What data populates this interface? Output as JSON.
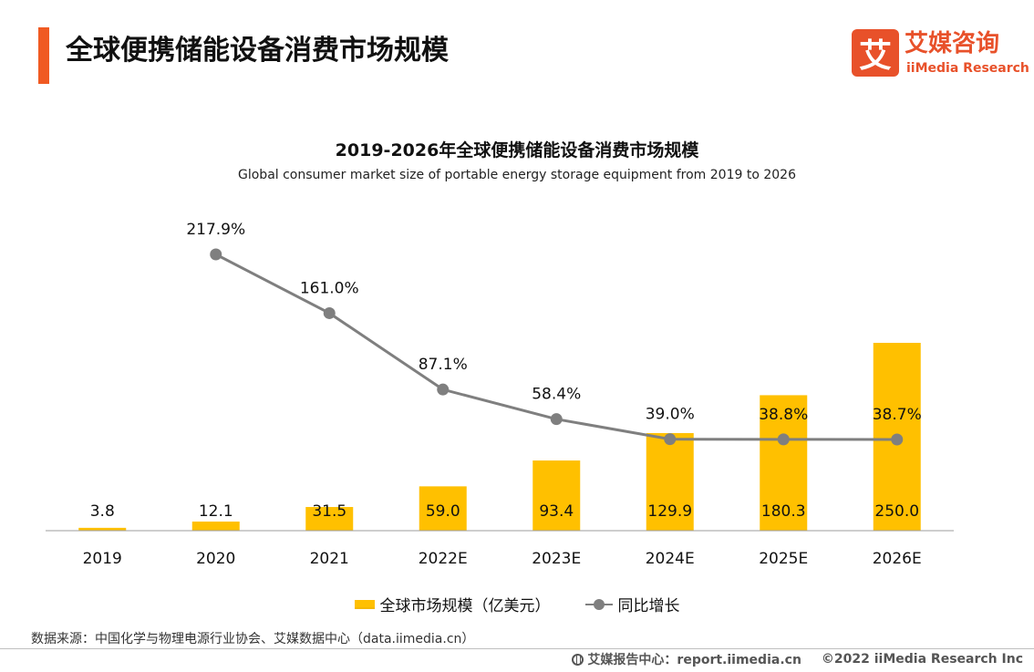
{
  "header": {
    "title": "全球便携储能设备消费市场规模",
    "accent_color": "#f05a22"
  },
  "logo": {
    "mark": "艾",
    "name_cn": "艾媒咨询",
    "name_en": "iiMedia Research",
    "color": "#e8512a"
  },
  "chart_data": {
    "type": "bar",
    "title": "2019-2026年全球便携储能设备消费市场规模",
    "subtitle": "Global consumer market size of portable energy storage equipment from 2019 to 2026",
    "categories": [
      "2019",
      "2020",
      "2021",
      "2022E",
      "2023E",
      "2024E",
      "2025E",
      "2026E"
    ],
    "series": [
      {
        "name": "全球市场规模（亿美元）",
        "type": "bar",
        "values": [
          3.8,
          12.1,
          31.5,
          59.0,
          93.4,
          129.9,
          180.3,
          250.0
        ],
        "labels": [
          "3.8",
          "12.1",
          "31.5",
          "59.0",
          "93.4",
          "129.9",
          "180.3",
          "250.0"
        ],
        "color": "#ffc000"
      },
      {
        "name": "同比增长",
        "type": "line",
        "values": [
          null,
          217.9,
          161.0,
          87.1,
          58.4,
          39.0,
          38.8,
          38.7
        ],
        "labels": [
          "",
          "217.9%",
          "161.0%",
          "87.1%",
          "58.4%",
          "39.0%",
          "38.8%",
          "38.7%"
        ],
        "color": "#7f7f7f"
      }
    ],
    "bar_axis_range": [
      0,
      500
    ],
    "line_axis_range": [
      30,
      230
    ],
    "grid": false,
    "legend_position": "bottom"
  },
  "legend": {
    "bar_label": "全球市场规模（亿美元）",
    "line_label": "同比增长"
  },
  "source": "数据来源：中国化学与物理电源行业协会、艾媒数据中心（data.iimedia.cn）",
  "footer": {
    "report": "艾媒报告中心：report.iimedia.cn",
    "copyright": "©2022  iiMedia Research  Inc"
  }
}
